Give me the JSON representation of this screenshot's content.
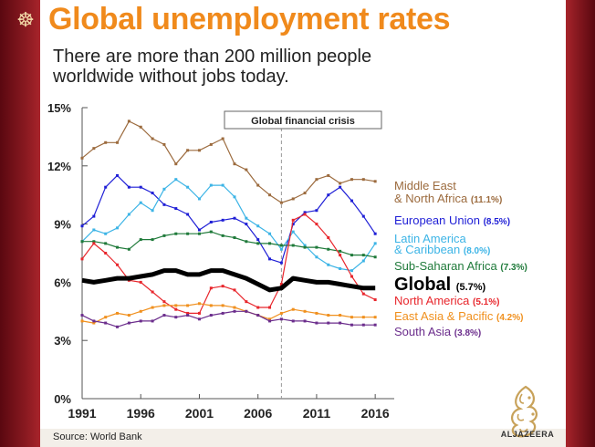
{
  "title": "Global unemployment rates",
  "subtitle": "There are more than 200 million people worldwide without jobs today.",
  "source": "Source: World Bank",
  "brand": "ALJAZEERA",
  "colors": {
    "frame": "#8e1b22",
    "title": "#f08a1c"
  },
  "chart_data": {
    "type": "line",
    "xlim": [
      1991,
      2017
    ],
    "ylim": [
      0,
      15
    ],
    "x_ticks": [
      "1991",
      "1996",
      "2001",
      "2006",
      "2011",
      "2016"
    ],
    "y_ticks": [
      "0%",
      "3%",
      "6%",
      "9%",
      "12%",
      "15%"
    ],
    "grid": false,
    "annotation": {
      "label": "Global financial crisis",
      "x": 2008
    },
    "x": [
      1991,
      1992,
      1993,
      1994,
      1995,
      1996,
      1997,
      1998,
      1999,
      2000,
      2001,
      2002,
      2003,
      2004,
      2005,
      2006,
      2007,
      2008,
      2009,
      2010,
      2011,
      2012,
      2013,
      2014,
      2015,
      2016
    ],
    "series": [
      {
        "name": "Middle East & North Africa",
        "line1": "Middle East",
        "line2": "& North Africa",
        "value_label": "(11.1%)",
        "color": "#9c6b3e",
        "width": 1.2,
        "values": [
          12.4,
          12.9,
          13.2,
          13.2,
          14.3,
          14.0,
          13.4,
          13.1,
          12.1,
          12.8,
          12.8,
          13.1,
          13.4,
          12.1,
          11.8,
          11.0,
          10.5,
          10.1,
          10.3,
          10.6,
          11.3,
          11.5,
          11.1,
          11.3,
          11.3,
          11.2
        ]
      },
      {
        "name": "European Union",
        "line1": "European Union",
        "value_label": "(8.5%)",
        "color": "#1f1fd6",
        "width": 1.2,
        "values": [
          8.9,
          9.4,
          10.9,
          11.5,
          10.9,
          10.9,
          10.6,
          10.0,
          9.8,
          9.5,
          8.7,
          9.1,
          9.2,
          9.3,
          9.0,
          8.2,
          7.2,
          7.0,
          9.0,
          9.6,
          9.7,
          10.5,
          10.9,
          10.2,
          9.4,
          8.5
        ]
      },
      {
        "name": "Latin America & Caribbean",
        "line1": "Latin America",
        "line2": "& Caribbean",
        "value_label": "(8.0%)",
        "color": "#3cb4e6",
        "width": 1.2,
        "values": [
          8.1,
          8.7,
          8.5,
          8.8,
          9.5,
          10.1,
          9.7,
          10.8,
          11.3,
          10.9,
          10.3,
          11.0,
          11.0,
          10.4,
          9.3,
          8.9,
          8.5,
          7.7,
          8.6,
          7.9,
          7.3,
          6.9,
          6.7,
          6.6,
          7.1,
          8.0
        ]
      },
      {
        "name": "Sub-Saharan Africa",
        "line1": "Sub-Saharan Africa",
        "value_label": "(7.3%)",
        "color": "#1f7a3a",
        "width": 1.2,
        "values": [
          8.1,
          8.1,
          8.0,
          7.8,
          7.7,
          8.2,
          8.2,
          8.4,
          8.5,
          8.5,
          8.5,
          8.6,
          8.4,
          8.3,
          8.1,
          8.0,
          8.0,
          7.9,
          7.9,
          7.8,
          7.8,
          7.7,
          7.6,
          7.4,
          7.4,
          7.3
        ]
      },
      {
        "name": "Global",
        "line1": "Global",
        "value_label": "(5.7%)",
        "color": "#000000",
        "width": 5,
        "values": [
          6.1,
          6.0,
          6.1,
          6.2,
          6.2,
          6.3,
          6.4,
          6.6,
          6.6,
          6.4,
          6.4,
          6.6,
          6.6,
          6.4,
          6.2,
          5.9,
          5.6,
          5.7,
          6.2,
          6.1,
          6.0,
          6.0,
          5.9,
          5.8,
          5.7,
          5.7
        ]
      },
      {
        "name": "North America",
        "line1": "North America",
        "value_label": "(5.1%)",
        "color": "#e8262c",
        "width": 1.2,
        "values": [
          7.2,
          8.0,
          7.5,
          6.9,
          6.1,
          6.0,
          5.5,
          5.0,
          4.6,
          4.4,
          4.4,
          5.7,
          5.8,
          5.6,
          5.0,
          4.7,
          4.7,
          5.9,
          9.2,
          9.5,
          9.0,
          8.3,
          7.4,
          6.3,
          5.4,
          5.1
        ]
      },
      {
        "name": "East Asia & Pacific",
        "line1": "East Asia & Pacific",
        "value_label": "(4.2%)",
        "color": "#f0901e",
        "width": 1.2,
        "values": [
          4.0,
          3.9,
          4.2,
          4.4,
          4.3,
          4.5,
          4.7,
          4.8,
          4.8,
          4.8,
          4.9,
          4.8,
          4.8,
          4.7,
          4.5,
          4.3,
          4.1,
          4.4,
          4.6,
          4.5,
          4.4,
          4.3,
          4.3,
          4.2,
          4.2,
          4.2
        ]
      },
      {
        "name": "South Asia",
        "line1": "South Asia",
        "value_label": "(3.8%)",
        "color": "#6b2d8c",
        "width": 1.2,
        "values": [
          4.3,
          4.0,
          3.9,
          3.7,
          3.9,
          4.0,
          4.0,
          4.3,
          4.2,
          4.3,
          4.1,
          4.3,
          4.4,
          4.5,
          4.5,
          4.3,
          4.0,
          4.1,
          4.0,
          4.0,
          3.9,
          3.9,
          3.9,
          3.8,
          3.8,
          3.8
        ]
      }
    ]
  }
}
